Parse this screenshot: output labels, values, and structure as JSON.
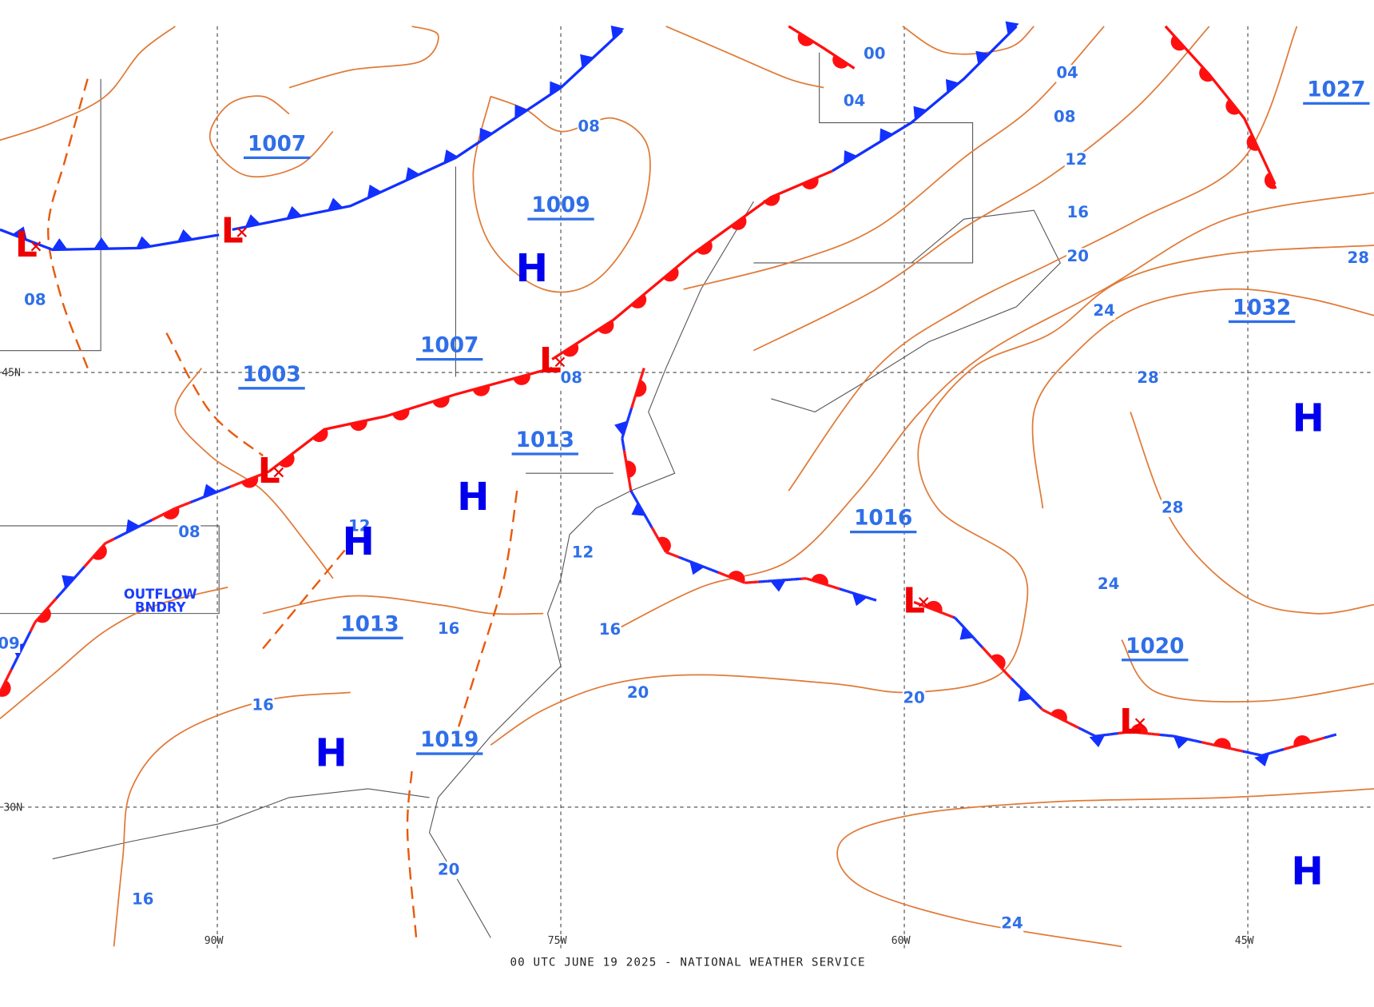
{
  "map": {
    "footer": "00 UTC JUNE 19 2025 - NATIONAL WEATHER SERVICE",
    "grid_labels": [
      "45N",
      "30N",
      "90W",
      "75W",
      "60W",
      "45W"
    ],
    "center_pressures": [
      "1007",
      "1009",
      "1007",
      "1003",
      "1013",
      "1016",
      "1013",
      "1019",
      "1020",
      "1032",
      "1027"
    ],
    "isobar_labels": [
      "08",
      "00",
      "04",
      "04",
      "08",
      "12",
      "16",
      "20",
      "24",
      "28",
      "28",
      "24",
      "28",
      "08",
      "08",
      "08",
      "12",
      "12",
      "16",
      "16",
      "16",
      "16",
      "20",
      "20",
      "20",
      "24",
      "09"
    ],
    "highs": [
      "H",
      "H",
      "H",
      "H",
      "H",
      "H"
    ],
    "lows": [
      "L",
      "L",
      "L",
      "L",
      "L",
      "L"
    ],
    "annotation": [
      "OUTFLOW",
      "BNDRY"
    ]
  }
}
